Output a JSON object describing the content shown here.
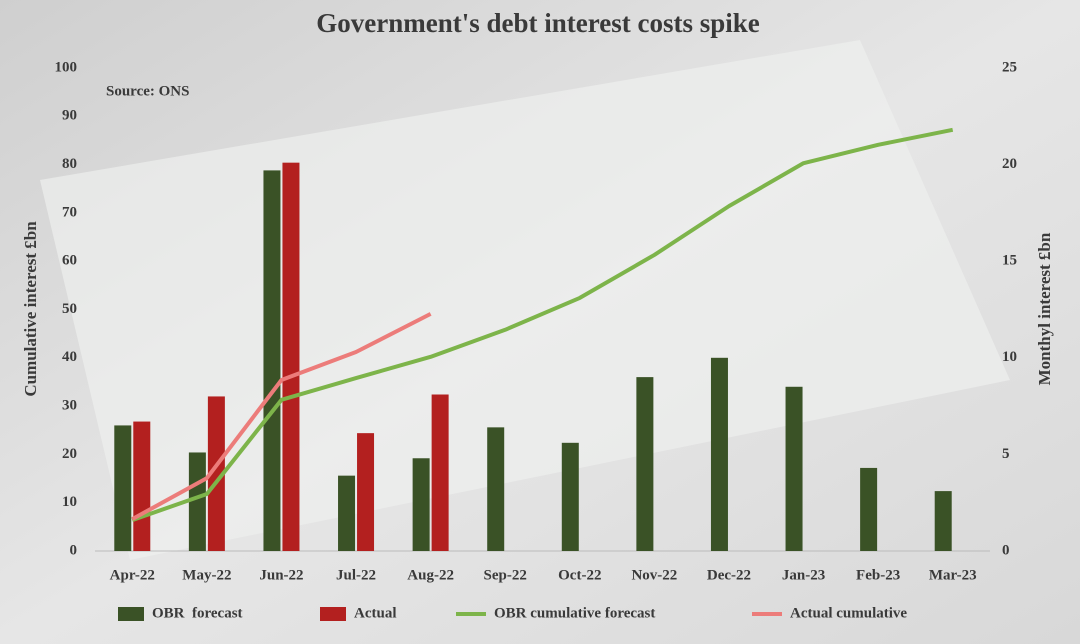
{
  "chart_data": {
    "type": "bar",
    "title": "Government's debt interest costs spike",
    "annotation": "Source: ONS",
    "y_label": "Cumulative interest £bn",
    "y2_label": "Monthyl interest £bn",
    "categories": [
      "Apr-22",
      "May-22",
      "Jun-22",
      "Jul-22",
      "Aug-22",
      "Sep-22",
      "Oct-22",
      "Nov-22",
      "Dec-22",
      "Jan-23",
      "Feb-23",
      "Mar-23"
    ],
    "series": [
      {
        "name": "OBR  forecast",
        "type": "bar",
        "axis": "y2",
        "color": "#3a5226",
        "values": [
          6.5,
          5.1,
          19.7,
          3.9,
          4.8,
          6.4,
          5.6,
          9.0,
          10.0,
          8.5,
          4.3,
          3.1
        ]
      },
      {
        "name": "Actual",
        "type": "bar",
        "axis": "y2",
        "color": "#b3201f",
        "values": [
          6.7,
          8.0,
          20.1,
          6.1,
          8.1,
          null,
          null,
          null,
          null,
          null,
          null,
          null
        ]
      },
      {
        "name": "OBR cumulative forecast",
        "type": "line",
        "color": "#7db44a",
        "values": [
          6.4,
          11.8,
          31.3,
          35.8,
          40.2,
          45.8,
          52.4,
          61.3,
          71.4,
          80.3,
          84.1,
          87.2
        ]
      },
      {
        "name": "Actual cumulative",
        "type": "line",
        "color": "#ec7c7a",
        "values": [
          6.6,
          15.1,
          35.4,
          41.2,
          49.1,
          null,
          null,
          null,
          null,
          null,
          null,
          null
        ]
      }
    ],
    "ylim": [
      0,
      100
    ],
    "yticks": [
      0,
      10,
      20,
      30,
      40,
      50,
      60,
      70,
      80,
      90,
      100
    ],
    "y2lim": [
      0,
      25
    ],
    "y2ticks": [
      0,
      5,
      10,
      15,
      20,
      25
    ]
  }
}
